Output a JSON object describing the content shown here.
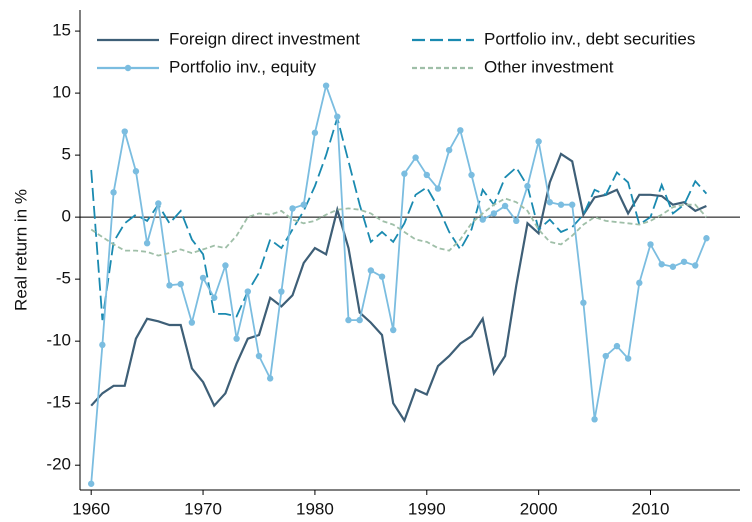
{
  "chart_data": {
    "type": "line",
    "y_label": "Real return in %",
    "x": [
      1960,
      1961,
      1962,
      1963,
      1964,
      1965,
      1966,
      1967,
      1968,
      1969,
      1970,
      1971,
      1972,
      1973,
      1974,
      1975,
      1976,
      1977,
      1978,
      1979,
      1980,
      1981,
      1982,
      1983,
      1984,
      1985,
      1986,
      1987,
      1988,
      1989,
      1990,
      1991,
      1992,
      1993,
      1994,
      1995,
      1996,
      1997,
      1998,
      1999,
      2000,
      2001,
      2002,
      2003,
      2004,
      2005,
      2006,
      2007,
      2008,
      2009,
      2010,
      2011,
      2012,
      2013,
      2014,
      2015
    ],
    "xlim": [
      1959,
      2018
    ],
    "xticks": [
      1960,
      1970,
      1980,
      1990,
      2000,
      2010
    ],
    "ylim": [
      -22,
      16.7
    ],
    "yticks": [
      -20,
      -15,
      -10,
      -5,
      0,
      5,
      10,
      15
    ],
    "zero_line": true,
    "legend": "top",
    "series": [
      {
        "name": "Foreign direct investment",
        "color": "#3e5f77",
        "line_style": "solid",
        "marker": false,
        "values": [
          -15.2,
          -14.2,
          -13.6,
          -13.6,
          -9.8,
          -8.2,
          -8.4,
          -8.7,
          -8.7,
          -12.2,
          -13.3,
          -15.2,
          -14.2,
          -11.8,
          -9.8,
          -9.5,
          -6.5,
          -7.2,
          -6.3,
          -3.7,
          -2.5,
          -3.0,
          0.6,
          -2.5,
          -7.7,
          -8.5,
          -9.5,
          -15.0,
          -16.4,
          -13.9,
          -14.3,
          -12.0,
          -11.2,
          -10.2,
          -9.6,
          -8.2,
          -12.6,
          -11.2,
          -5.5,
          -0.5,
          -1.3,
          2.8,
          5.1,
          4.5,
          0.2,
          1.6,
          1.8,
          2.2,
          0.3,
          1.8,
          1.8,
          1.7,
          1.0,
          1.2,
          0.5,
          0.9
        ]
      },
      {
        "name": "Portfolio inv., debt securities",
        "color": "#1a8ab0",
        "line_style": "dashed",
        "marker": false,
        "values": [
          3.8,
          -8.3,
          -2.0,
          -0.5,
          0.2,
          -0.3,
          1.0,
          -0.5,
          0.5,
          -1.8,
          -3.0,
          -7.8,
          -7.8,
          -8.0,
          -6.0,
          -4.5,
          -1.8,
          -2.5,
          -1.0,
          0.5,
          2.5,
          5.0,
          8.0,
          4.5,
          1.0,
          -2.0,
          -1.2,
          -2.0,
          -0.5,
          1.8,
          2.4,
          0.8,
          -1.2,
          -2.6,
          -1.0,
          2.2,
          1.0,
          3.2,
          4.0,
          2.5,
          -1.0,
          -0.2,
          -1.2,
          -0.8,
          0.2,
          2.2,
          1.8,
          3.6,
          2.8,
          -0.6,
          0.0,
          2.6,
          0.3,
          1.0,
          2.9,
          1.9
        ]
      },
      {
        "name": "Portfolio inv., equity",
        "color": "#7bbde0",
        "line_style": "solid",
        "marker": true,
        "values": [
          -21.5,
          -10.3,
          2.0,
          6.9,
          3.7,
          -2.1,
          1.1,
          -5.5,
          -5.4,
          -8.5,
          -4.9,
          -6.5,
          -3.9,
          -9.8,
          -6.0,
          -11.2,
          -13.0,
          -6.0,
          0.7,
          1.0,
          6.8,
          10.6,
          8.1,
          -8.3,
          -8.3,
          -4.3,
          -4.8,
          -9.1,
          3.5,
          4.8,
          3.4,
          2.3,
          5.4,
          7.0,
          3.4,
          -0.2,
          0.3,
          0.9,
          -0.3,
          2.5,
          6.1,
          1.2,
          1.0,
          1.0,
          -6.9,
          -16.3,
          -11.2,
          -10.4,
          -11.4,
          -5.3,
          -2.2,
          -3.8,
          -4.0,
          -3.6,
          -3.9,
          -1.7
        ]
      },
      {
        "name": "Other investment",
        "color": "#9fbfa8",
        "line_style": "dotted",
        "marker": false,
        "values": [
          -1.0,
          -1.6,
          -2.2,
          -2.7,
          -2.7,
          -2.8,
          -3.1,
          -2.9,
          -2.6,
          -2.9,
          -2.6,
          -2.3,
          -2.5,
          -1.5,
          0.0,
          0.3,
          0.2,
          0.5,
          -0.2,
          -0.5,
          -0.3,
          0.2,
          0.6,
          0.7,
          0.6,
          0.3,
          -0.3,
          -0.6,
          -1.2,
          -1.8,
          -2.0,
          -2.5,
          -2.7,
          -1.8,
          -0.5,
          0.3,
          1.0,
          1.5,
          1.2,
          0.5,
          -1.0,
          -2.0,
          -2.2,
          -1.5,
          -0.6,
          0.0,
          -0.3,
          -0.4,
          -0.5,
          -0.6,
          -0.3,
          0.2,
          0.8,
          1.0,
          1.0,
          0.0
        ]
      }
    ]
  }
}
